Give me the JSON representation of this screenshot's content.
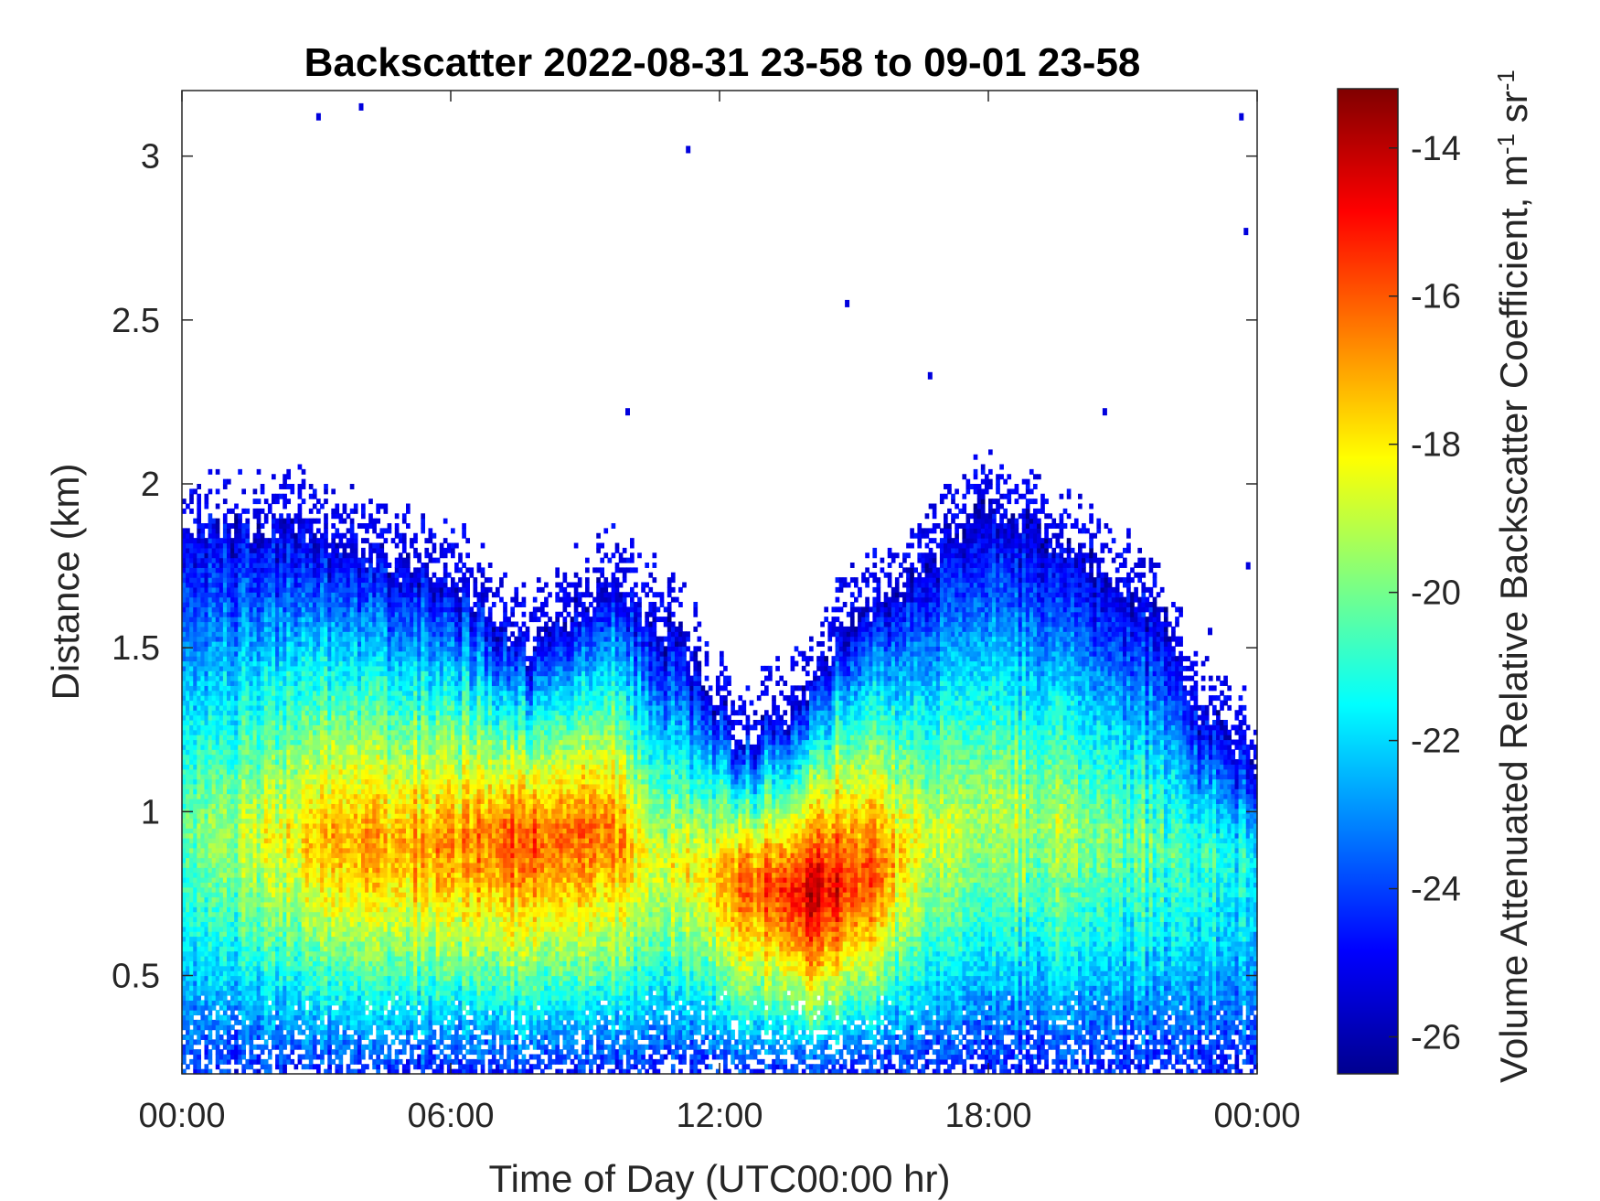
{
  "chart_data": {
    "type": "heatmap",
    "title": "Backscatter 2022-08-31 23-58 to 09-01 23-58",
    "xlabel": "Time of Day (UTC00:00 hr)",
    "ylabel": "Distance (km)",
    "colorbar_label": "Volume Attenuated Relative Backscatter Coefficient, m",
    "colorbar_label_unit_parts": [
      "-1",
      " sr",
      "-1"
    ],
    "colormap": "jet",
    "colorbar_range": [
      -26.5,
      -13.2
    ],
    "colorbar_ticks": [
      -14,
      -16,
      -18,
      -20,
      -22,
      -24,
      -26
    ],
    "x_range_hours": [
      0,
      24
    ],
    "x_ticks": [
      {
        "value": 0,
        "label": "00:00"
      },
      {
        "value": 6,
        "label": "06:00"
      },
      {
        "value": 12,
        "label": "12:00"
      },
      {
        "value": 18,
        "label": "18:00"
      },
      {
        "value": 24,
        "label": "00:00"
      }
    ],
    "y_range_km": [
      0.2,
      3.2
    ],
    "y_ticks": [
      {
        "value": 0.5,
        "label": "0.5"
      },
      {
        "value": 1,
        "label": "1"
      },
      {
        "value": 1.5,
        "label": "1.5"
      },
      {
        "value": 2,
        "label": "2"
      },
      {
        "value": 2.5,
        "label": "2.5"
      },
      {
        "value": 3,
        "label": "3"
      }
    ],
    "layer_top_km_by_hour": [
      {
        "hour": 0,
        "top": 1.85
      },
      {
        "hour": 2,
        "top": 1.88
      },
      {
        "hour": 4,
        "top": 1.78
      },
      {
        "hour": 6,
        "top": 1.72
      },
      {
        "hour": 7.7,
        "top": 1.5
      },
      {
        "hour": 9.5,
        "top": 1.68
      },
      {
        "hour": 11,
        "top": 1.55
      },
      {
        "hour": 12.5,
        "top": 1.2
      },
      {
        "hour": 14,
        "top": 1.35
      },
      {
        "hour": 15,
        "top": 1.6
      },
      {
        "hour": 16.5,
        "top": 1.75
      },
      {
        "hour": 18,
        "top": 1.95
      },
      {
        "hour": 19,
        "top": 1.85
      },
      {
        "hour": 20.5,
        "top": 1.75
      },
      {
        "hour": 22,
        "top": 1.6
      },
      {
        "hour": 22.7,
        "top": 1.3
      },
      {
        "hour": 24,
        "top": 1.15
      }
    ],
    "peak_km_by_hour": [
      {
        "hour": 0,
        "peak": 0.95,
        "value": -20.5
      },
      {
        "hour": 2,
        "peak": 0.92,
        "value": -18.5
      },
      {
        "hour": 3.5,
        "peak": 0.92,
        "value": -17.2
      },
      {
        "hour": 5,
        "peak": 0.9,
        "value": -17.0
      },
      {
        "hour": 7.5,
        "peak": 0.92,
        "value": -16.0
      },
      {
        "hour": 9.5,
        "peak": 0.95,
        "value": -16.2
      },
      {
        "hour": 10.5,
        "peak": 0.85,
        "value": -18.5
      },
      {
        "hour": 11.5,
        "peak": 0.82,
        "value": -18.0
      },
      {
        "hour": 12.5,
        "peak": 0.8,
        "value": -16.5
      },
      {
        "hour": 14,
        "peak": 0.75,
        "value": -14.2
      },
      {
        "hour": 15.5,
        "peak": 0.82,
        "value": -16.0
      },
      {
        "hour": 16.5,
        "peak": 0.9,
        "value": -18.8
      },
      {
        "hour": 18,
        "peak": 1.0,
        "value": -19.0
      },
      {
        "hour": 20,
        "peak": 0.95,
        "value": -19.5
      },
      {
        "hour": 22,
        "peak": 0.9,
        "value": -20.5
      },
      {
        "hour": 24,
        "peak": 0.85,
        "value": -21.5
      }
    ],
    "isolated_points": [
      {
        "hour": 3.05,
        "km": 3.12
      },
      {
        "hour": 4.0,
        "km": 3.15
      },
      {
        "hour": 11.3,
        "km": 3.02
      },
      {
        "hour": 23.65,
        "km": 3.12
      },
      {
        "hour": 23.75,
        "km": 2.77
      },
      {
        "hour": 14.85,
        "km": 2.55
      },
      {
        "hour": 16.7,
        "km": 2.33
      },
      {
        "hour": 9.95,
        "km": 2.22
      },
      {
        "hour": 20.6,
        "km": 2.22
      },
      {
        "hour": 23.8,
        "km": 1.75
      },
      {
        "hour": 22.95,
        "km": 1.55
      }
    ]
  }
}
